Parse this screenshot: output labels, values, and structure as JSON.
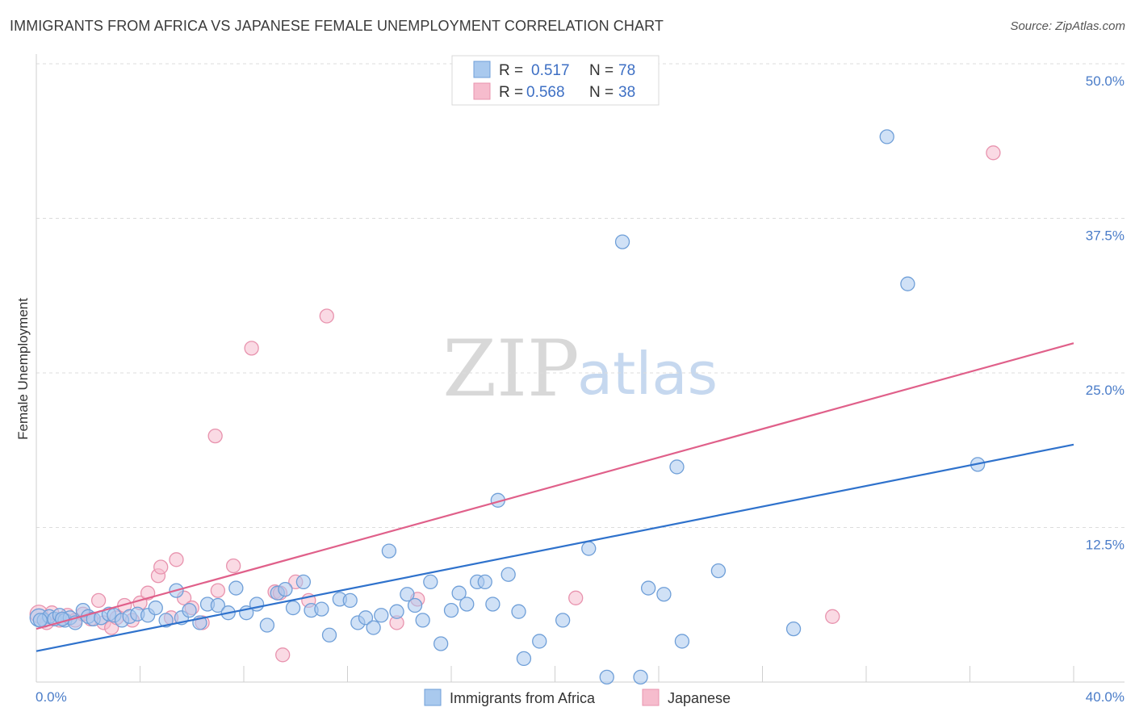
{
  "title": "IMMIGRANTS FROM AFRICA VS JAPANESE FEMALE UNEMPLOYMENT CORRELATION CHART",
  "source": "Source: ZipAtlas.com",
  "watermark": {
    "zip": "ZIP",
    "atlas": "atlas"
  },
  "colors": {
    "blue_fill": "#a9c9ee",
    "blue_stroke": "#6f9fd8",
    "blue_line": "#2f72cc",
    "pink_fill": "#f6bccd",
    "pink_stroke": "#e893ae",
    "pink_line": "#e0608a",
    "grid": "#dcdcdc",
    "axis_text": "#4a7cc8"
  },
  "legend": {
    "r_label": "R =",
    "n_label": "N =",
    "blue": {
      "r": "0.517",
      "n": "78"
    },
    "pink": {
      "r": "0.568",
      "n": "38"
    }
  },
  "chart_data": {
    "type": "scatter",
    "ylabel": "Female Unemployment",
    "xlim": [
      0,
      40
    ],
    "ylim": [
      0,
      50
    ],
    "x_ticks": [
      "0.0%",
      "40.0%"
    ],
    "y_ticks": [
      {
        "value": 12.5,
        "label": "12.5%"
      },
      {
        "value": 25.0,
        "label": "25.0%"
      },
      {
        "value": 37.5,
        "label": "37.5%"
      },
      {
        "value": 50.0,
        "label": "50.0%"
      }
    ],
    "grid": true,
    "legend_position": "top-center",
    "series": [
      {
        "name": "Immigrants from Africa",
        "color": "blue",
        "trend": [
          [
            0,
            2.5
          ],
          [
            40,
            19.2
          ]
        ],
        "points": [
          [
            0.1,
            5.2
          ],
          [
            0.3,
            5.0
          ],
          [
            0.5,
            5.3
          ],
          [
            0.7,
            5.1
          ],
          [
            0.9,
            5.4
          ],
          [
            1.1,
            5.0
          ],
          [
            1.3,
            5.2
          ],
          [
            1.5,
            4.8
          ],
          [
            1.8,
            5.8
          ],
          [
            2.0,
            5.3
          ],
          [
            2.2,
            5.1
          ],
          [
            2.5,
            5.2
          ],
          [
            2.8,
            5.5
          ],
          [
            3.0,
            5.4
          ],
          [
            3.3,
            5.0
          ],
          [
            3.6,
            5.3
          ],
          [
            3.9,
            5.5
          ],
          [
            4.3,
            5.4
          ],
          [
            4.6,
            6.0
          ],
          [
            5.0,
            5.0
          ],
          [
            5.4,
            7.4
          ],
          [
            5.6,
            5.2
          ],
          [
            5.9,
            5.8
          ],
          [
            6.3,
            4.8
          ],
          [
            6.6,
            6.3
          ],
          [
            7.0,
            6.2
          ],
          [
            7.4,
            5.6
          ],
          [
            7.7,
            7.6
          ],
          [
            8.1,
            5.6
          ],
          [
            8.5,
            6.3
          ],
          [
            8.9,
            4.6
          ],
          [
            9.3,
            7.2
          ],
          [
            9.6,
            7.5
          ],
          [
            9.9,
            6.0
          ],
          [
            10.3,
            8.1
          ],
          [
            10.6,
            5.8
          ],
          [
            11.0,
            5.9
          ],
          [
            11.3,
            3.8
          ],
          [
            11.7,
            6.7
          ],
          [
            12.1,
            6.6
          ],
          [
            12.4,
            4.8
          ],
          [
            12.7,
            5.2
          ],
          [
            13.0,
            4.4
          ],
          [
            13.3,
            5.4
          ],
          [
            13.6,
            10.6
          ],
          [
            13.9,
            5.7
          ],
          [
            14.3,
            7.1
          ],
          [
            14.6,
            6.2
          ],
          [
            14.9,
            5.0
          ],
          [
            15.2,
            8.1
          ],
          [
            15.6,
            3.1
          ],
          [
            16.0,
            5.8
          ],
          [
            16.3,
            7.2
          ],
          [
            16.6,
            6.3
          ],
          [
            17.0,
            8.1
          ],
          [
            17.3,
            8.1
          ],
          [
            17.6,
            6.3
          ],
          [
            17.8,
            14.7
          ],
          [
            18.2,
            8.7
          ],
          [
            18.6,
            5.7
          ],
          [
            18.8,
            1.9
          ],
          [
            19.4,
            3.3
          ],
          [
            20.3,
            5.0
          ],
          [
            21.3,
            10.8
          ],
          [
            22.0,
            0.4
          ],
          [
            22.6,
            35.6
          ],
          [
            23.3,
            0.4
          ],
          [
            23.6,
            7.6
          ],
          [
            24.2,
            7.1
          ],
          [
            24.7,
            17.4
          ],
          [
            24.9,
            3.3
          ],
          [
            26.3,
            9.0
          ],
          [
            29.2,
            4.3
          ],
          [
            32.8,
            44.1
          ],
          [
            33.6,
            32.2
          ],
          [
            36.3,
            17.6
          ],
          [
            0.15,
            5.0
          ],
          [
            1.0,
            5.1
          ]
        ]
      },
      {
        "name": "Japanese",
        "color": "pink",
        "trend": [
          [
            0,
            4.3
          ],
          [
            40,
            27.4
          ]
        ],
        "points": [
          [
            0.1,
            5.5
          ],
          [
            0.4,
            4.8
          ],
          [
            0.6,
            5.6
          ],
          [
            0.9,
            5.0
          ],
          [
            1.2,
            5.4
          ],
          [
            1.5,
            5.0
          ],
          [
            1.8,
            5.5
          ],
          [
            2.1,
            5.1
          ],
          [
            2.4,
            6.6
          ],
          [
            2.6,
            4.8
          ],
          [
            2.9,
            4.4
          ],
          [
            3.1,
            5.2
          ],
          [
            3.4,
            6.2
          ],
          [
            3.7,
            5.0
          ],
          [
            4.0,
            6.4
          ],
          [
            4.3,
            7.2
          ],
          [
            4.7,
            8.6
          ],
          [
            4.8,
            9.3
          ],
          [
            5.2,
            5.2
          ],
          [
            5.4,
            9.9
          ],
          [
            5.7,
            6.8
          ],
          [
            6.0,
            6.0
          ],
          [
            6.4,
            4.8
          ],
          [
            6.9,
            19.9
          ],
          [
            7.0,
            7.4
          ],
          [
            7.6,
            9.4
          ],
          [
            8.3,
            27.0
          ],
          [
            9.2,
            7.3
          ],
          [
            9.4,
            7.2
          ],
          [
            9.5,
            2.2
          ],
          [
            10.0,
            8.1
          ],
          [
            10.5,
            6.6
          ],
          [
            11.2,
            29.6
          ],
          [
            13.9,
            4.8
          ],
          [
            14.7,
            6.7
          ],
          [
            20.8,
            6.8
          ],
          [
            30.7,
            5.3
          ],
          [
            36.9,
            42.8
          ]
        ]
      }
    ]
  }
}
